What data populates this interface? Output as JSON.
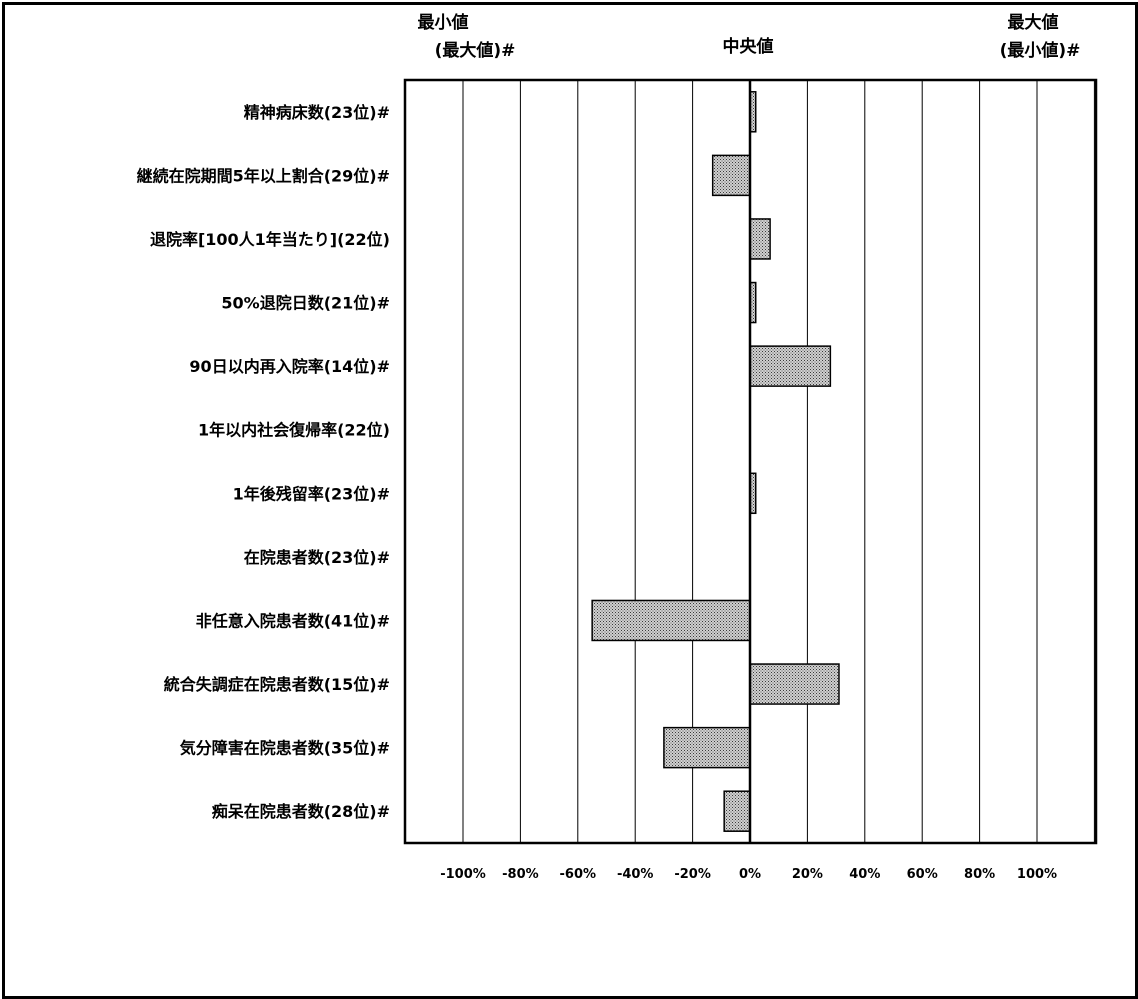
{
  "chart_data": {
    "type": "bar",
    "orientation": "horizontal",
    "header": {
      "left_line1": "最小値",
      "left_line2": "(最大値)#",
      "center": "中央値",
      "right_line1": "最大値",
      "right_line2": "(最小値)#"
    },
    "categories": [
      "精神病床数(23位)#",
      "継続在院期間5年以上割合(29位)#",
      "退院率[100人1年当たり](22位)",
      "50%退院日数(21位)#",
      "90日以内再入院率(14位)#",
      "1年以内社会復帰率(22位)",
      "1年後残留率(23位)#",
      "在院患者数(23位)#",
      "非任意入院患者数(41位)#",
      "統合失調症在院患者数(15位)#",
      "気分障害在院患者数(35位)#",
      "痴呆在院患者数(28位)#"
    ],
    "values": [
      2,
      -13,
      7,
      2,
      28,
      0,
      2,
      0,
      -55,
      31,
      -30,
      -9
    ],
    "unit": "%",
    "xlim": [
      -120,
      120
    ],
    "xticks": [
      -100,
      -80,
      -60,
      -40,
      -20,
      0,
      20,
      40,
      60,
      80,
      100
    ],
    "xtick_labels": [
      "-100%",
      "-80%",
      "-60%",
      "-40%",
      "-20%",
      "0%",
      "20%",
      "40%",
      "60%",
      "80%",
      "100%"
    ],
    "grid": true,
    "bar_fill": "#9a9a9a"
  }
}
